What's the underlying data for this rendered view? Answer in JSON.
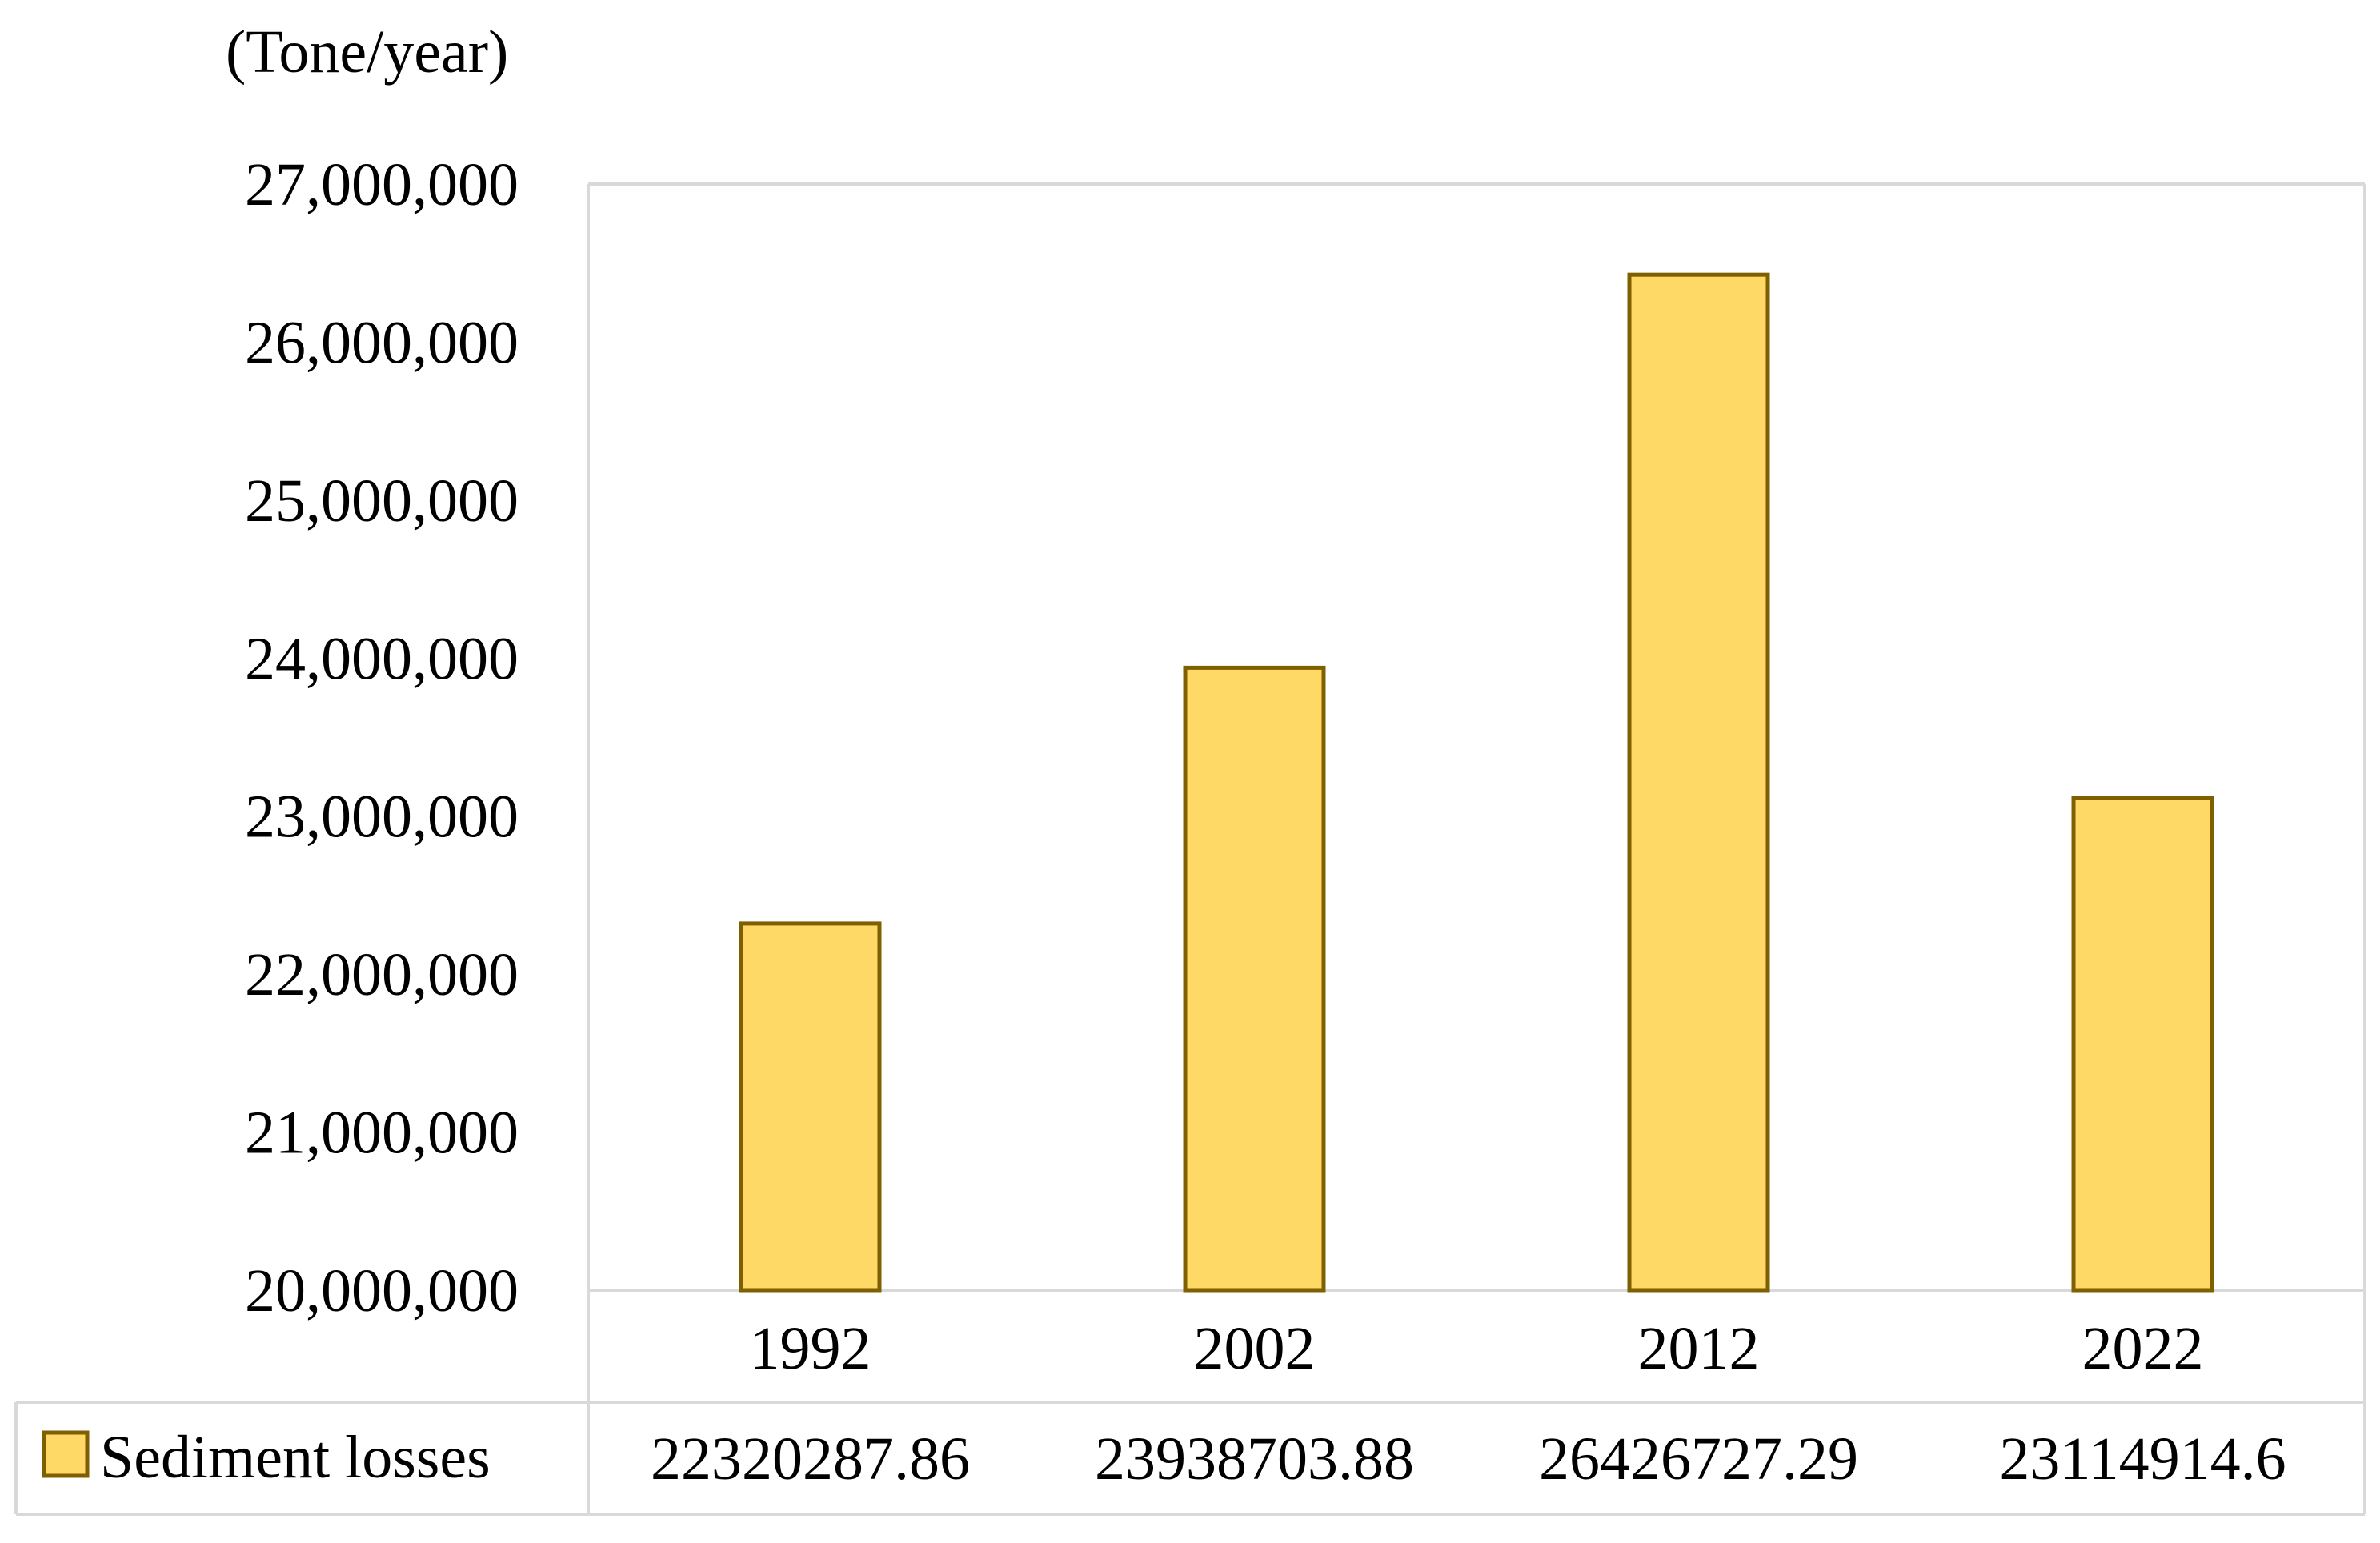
{
  "chart_data": {
    "type": "bar",
    "ylabel": "(Tone/year)",
    "categories": [
      "1992",
      "2002",
      "2012",
      "2022"
    ],
    "series": [
      {
        "name": "Sediment losses",
        "values": [
          22320287.86,
          23938703.88,
          26426727.29,
          23114914.6
        ],
        "value_labels": [
          "22320287.86",
          "23938703.88",
          "26426727.29",
          "23114914.6"
        ]
      }
    ],
    "ylim": [
      20000000,
      27000000
    ],
    "yticks": [
      20000000,
      21000000,
      22000000,
      23000000,
      24000000,
      25000000,
      26000000,
      27000000
    ],
    "ytick_labels": [
      "20,000,000",
      "21,000,000",
      "22,000,000",
      "23,000,000",
      "24,000,000",
      "25,000,000",
      "26,000,000",
      "27,000,000"
    ],
    "grid": false,
    "data_table": true,
    "legend_placement": "data-table-row-header",
    "colors": {
      "bar_fill": "#FFD966",
      "bar_stroke": "#7F6000",
      "frame": "#D9D9D9"
    }
  }
}
